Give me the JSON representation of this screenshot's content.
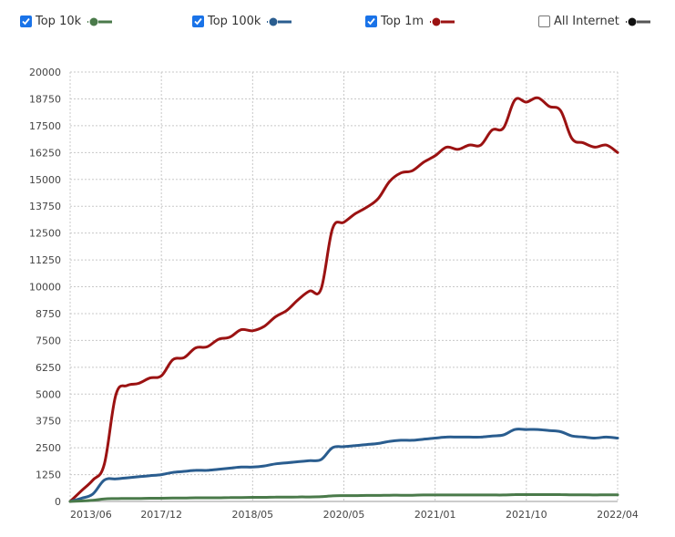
{
  "legend": {
    "items": [
      {
        "label": "Top 10k",
        "checked": true,
        "color": "#4a7a4a"
      },
      {
        "label": "Top 100k",
        "checked": true,
        "color": "#2a5d8f"
      },
      {
        "label": "Top 1m",
        "checked": true,
        "color": "#9b1212"
      },
      {
        "label": "All Internet",
        "checked": false,
        "color": "#333333"
      }
    ]
  },
  "chart_data": {
    "type": "line",
    "x_tick_labels": [
      "2013/06",
      "2017/12",
      "2018/05",
      "2020/05",
      "2021/01",
      "2021/10",
      "2022/04"
    ],
    "y_ticks": [
      0,
      1250,
      2500,
      3750,
      5000,
      6250,
      7500,
      8750,
      10000,
      11250,
      12500,
      13750,
      15000,
      16250,
      17500,
      18750,
      20000
    ],
    "ylim": [
      0,
      20000
    ],
    "grid": true,
    "legend_position": "top",
    "series": [
      {
        "name": "Top 1m",
        "color": "#9b1212",
        "values": [
          0,
          500,
          1000,
          1750,
          4950,
          5400,
          5500,
          5750,
          5850,
          6600,
          6700,
          7150,
          7200,
          7550,
          7650,
          8000,
          7950,
          8150,
          8600,
          8900,
          9400,
          9800,
          9900,
          12700,
          13000,
          13400,
          13700,
          14100,
          14900,
          15300,
          15400,
          15800,
          16100,
          16500,
          16400,
          16600,
          16600,
          17300,
          17400,
          18700,
          18600,
          18800,
          18400,
          18200,
          16900,
          16700,
          16500,
          16600,
          16250
        ]
      },
      {
        "name": "Top 100k",
        "color": "#2a5d8f",
        "values": [
          0,
          150,
          350,
          1000,
          1050,
          1100,
          1150,
          1200,
          1250,
          1350,
          1400,
          1450,
          1450,
          1500,
          1550,
          1600,
          1600,
          1650,
          1750,
          1800,
          1850,
          1900,
          1950,
          2500,
          2550,
          2600,
          2650,
          2700,
          2800,
          2850,
          2850,
          2900,
          2950,
          3000,
          3000,
          3000,
          3000,
          3050,
          3100,
          3350,
          3350,
          3350,
          3300,
          3250,
          3050,
          3000,
          2950,
          3000,
          2950
        ]
      },
      {
        "name": "Top 10k",
        "color": "#4a7a4a",
        "values": [
          0,
          20,
          50,
          120,
          130,
          140,
          140,
          150,
          150,
          160,
          160,
          170,
          170,
          170,
          180,
          180,
          190,
          190,
          200,
          200,
          210,
          210,
          220,
          260,
          270,
          270,
          280,
          280,
          290,
          290,
          290,
          300,
          300,
          300,
          300,
          300,
          300,
          300,
          300,
          320,
          320,
          320,
          320,
          320,
          310,
          310,
          300,
          310,
          310
        ]
      }
    ]
  }
}
